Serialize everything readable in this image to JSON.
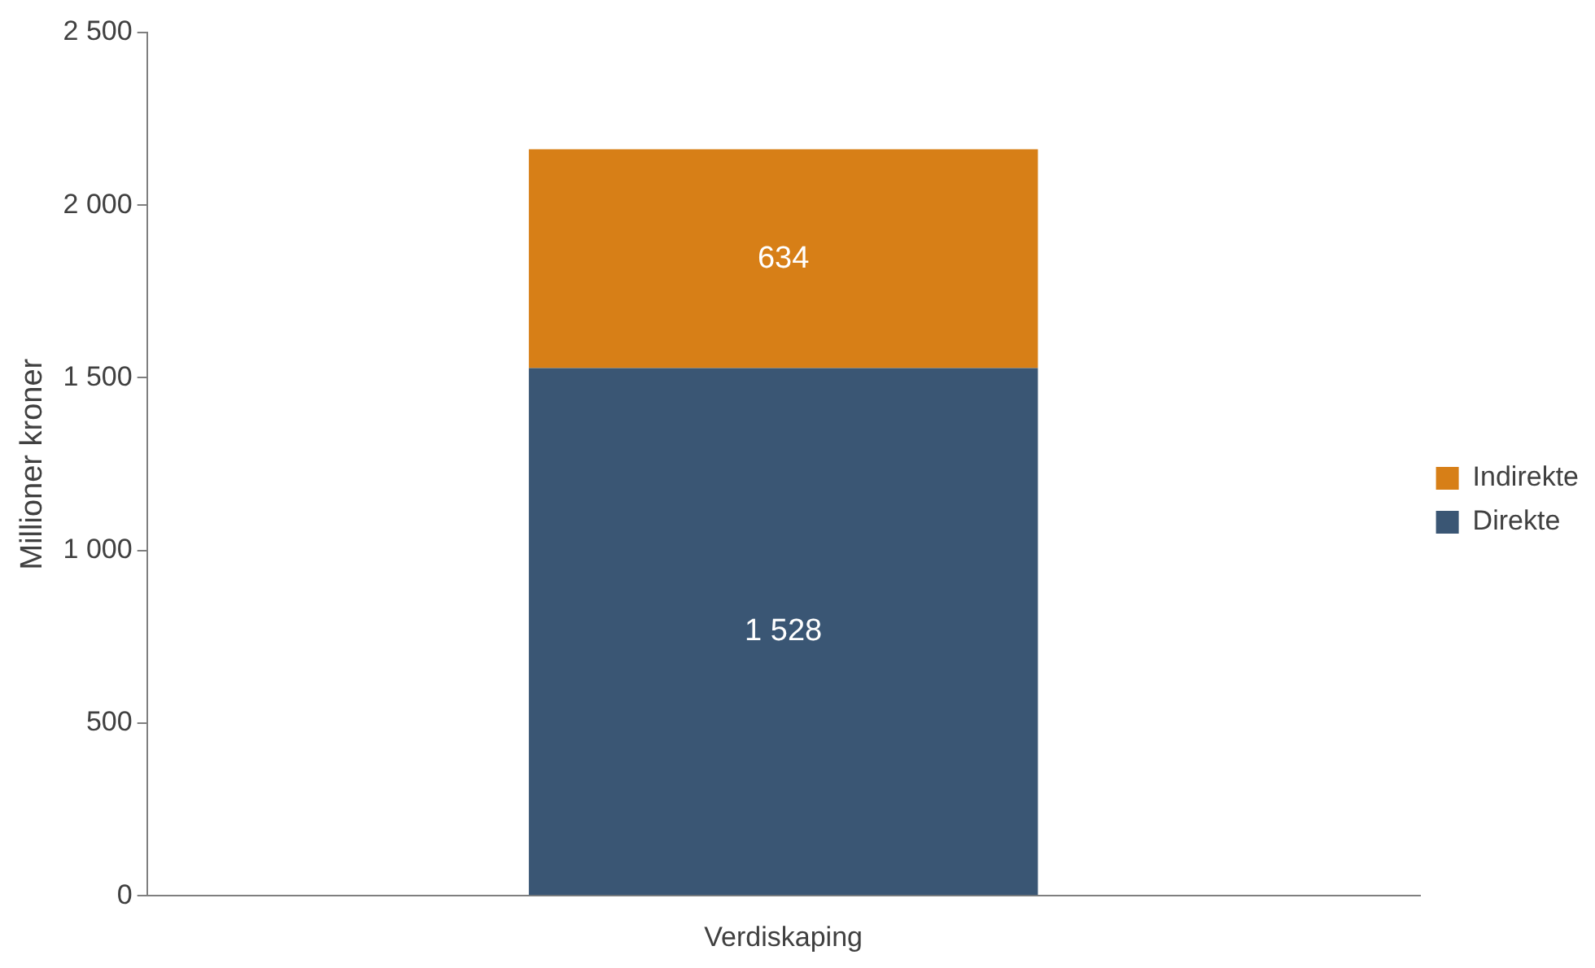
{
  "chart_data": {
    "type": "bar",
    "stacked": true,
    "ylabel": "Millioner kroner",
    "categories": [
      "Verdiskaping"
    ],
    "series": [
      {
        "name": "Direkte",
        "color": "#3a5674",
        "values": [
          1528
        ],
        "value_labels": [
          "1 528"
        ]
      },
      {
        "name": "Indirekte",
        "color": "#d77f17",
        "values": [
          634
        ],
        "value_labels": [
          "634"
        ]
      }
    ],
    "ylim": [
      0,
      2500
    ],
    "yticks": [
      {
        "value": 0,
        "label": "0"
      },
      {
        "value": 500,
        "label": "500"
      },
      {
        "value": 1000,
        "label": "1 000"
      },
      {
        "value": 1500,
        "label": "1 500"
      },
      {
        "value": 2000,
        "label": "2 000"
      },
      {
        "value": 2500,
        "label": "2 500"
      }
    ],
    "grid": false,
    "legend": "right"
  }
}
